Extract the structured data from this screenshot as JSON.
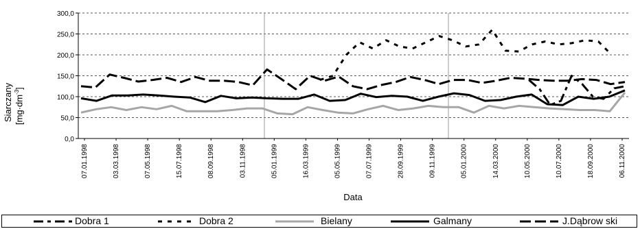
{
  "chart_data": {
    "type": "line",
    "xlabel": "Data",
    "ylabel": "Siarczany",
    "ylabel_unit_prefix": "[mg·dm",
    "ylabel_unit_sup": "-3",
    "ylabel_unit_suffix": "]",
    "ylim": [
      0,
      300
    ],
    "yticks": [
      "0,0",
      "50,0",
      "100,0",
      "150,0",
      "200,0",
      "250,0",
      "300,0"
    ],
    "grid": "horizontal dashed",
    "legend_position": "bottom",
    "x_tick_labels": [
      "07.01.1998",
      "03.03.1998",
      "07.05.1998",
      "15.07.1998",
      "08.09.1998",
      "03.11.1998",
      "05.01.1999",
      "16.03.1999",
      "05.05.1999",
      "07.07.1999",
      "28.09.1999",
      "09.11.1999",
      "05.01.2000",
      "14.03.2000",
      "10.05.2000",
      "10.07.2000",
      "18.09.2000",
      "06.11.2000"
    ],
    "series": [
      {
        "name": "Dobra 1",
        "color": "#000000",
        "style": "long-dash-dot",
        "values": [
          null,
          null,
          null,
          null,
          null,
          null,
          null,
          null,
          null,
          null,
          null,
          null,
          null,
          null,
          null,
          null,
          null,
          null,
          null,
          null,
          null,
          null,
          null,
          null,
          null,
          null,
          null,
          null,
          null,
          null,
          null,
          null,
          null,
          null,
          null,
          null,
          null,
          null,
          null,
          null,
          null,
          null,
          140,
          118,
          80,
          90,
          150,
          130,
          100,
          95,
          120,
          125
        ]
      },
      {
        "name": "Dobra 2",
        "color": "#000000",
        "style": "dotted",
        "values": [
          null,
          null,
          null,
          null,
          null,
          null,
          null,
          null,
          null,
          null,
          null,
          null,
          null,
          null,
          null,
          null,
          null,
          null,
          140,
          150,
          200,
          230,
          215,
          235,
          220,
          215,
          230,
          245,
          235,
          220,
          225,
          260,
          210,
          208,
          225,
          232,
          225,
          228,
          235,
          232,
          200,
          null
        ]
      },
      {
        "name": "Bielany",
        "color": "#a6a6a6",
        "style": "solid",
        "values": [
          62,
          70,
          75,
          68,
          75,
          70,
          78,
          65,
          65,
          65,
          68,
          72,
          72,
          60,
          58,
          75,
          68,
          62,
          60,
          70,
          78,
          68,
          72,
          78,
          75,
          75,
          62,
          78,
          72,
          78,
          75,
          72,
          70,
          68,
          68,
          65,
          110
        ]
      },
      {
        "name": "Galmany",
        "color": "#000000",
        "style": "solid",
        "values": [
          96,
          90,
          103,
          103,
          105,
          103,
          100,
          98,
          87,
          102,
          96,
          98,
          96,
          95,
          95,
          105,
          90,
          92,
          107,
          99,
          102,
          100,
          90,
          100,
          108,
          104,
          90,
          92,
          100,
          105,
          82,
          80,
          100,
          95,
          100,
          115
        ]
      },
      {
        "name": "J.Dąbrow ski",
        "color": "#000000",
        "style": "long-dash",
        "values": [
          125,
          122,
          153,
          145,
          136,
          140,
          145,
          135,
          147,
          138,
          138,
          135,
          127,
          165,
          142,
          118,
          150,
          138,
          148,
          125,
          118,
          128,
          135,
          147,
          140,
          130,
          140,
          140,
          133,
          138,
          145,
          143,
          140,
          138,
          138,
          142,
          140,
          130,
          135
        ]
      }
    ]
  },
  "legend": {
    "items": [
      "Dobra 1",
      "Dobra 2",
      "Bielany",
      "Galmany",
      "J.Dąbrow ski"
    ]
  }
}
